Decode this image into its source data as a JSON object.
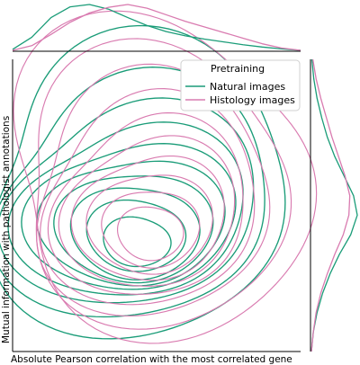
{
  "colors": {
    "natural": "#1a9c78",
    "histology": "#d97bb0",
    "axis": "#000000"
  },
  "chart_data": {
    "type": "kde-contour-joint",
    "xlabel": "Absolute Pearson correlation with the most correlated gene",
    "ylabel": "Mutual information with pathologist annotations",
    "legend": {
      "title": "Pretraining",
      "placement": "top-right",
      "entries": [
        "Natural images",
        "Histology images"
      ]
    },
    "series": [
      {
        "name": "Natural images",
        "color": "#1a9c78",
        "contours": [
          {
            "level": 1,
            "center": [
              0.42,
              0.63
            ],
            "radius": [
              0.115,
              0.09
            ],
            "aspect": 0.95,
            "shift": [
              0.01,
              -0.006
            ],
            "p1": 0.05,
            "p2": 0.03,
            "ph": 0.3
          },
          {
            "level": 2,
            "center": [
              0.415,
              0.61
            ],
            "radius": [
              0.165,
              0.14
            ],
            "aspect": 0.9,
            "shift": [
              0.012,
              -0.008
            ],
            "p1": 0.06,
            "p2": 0.03,
            "ph": 0.7
          },
          {
            "level": 3,
            "center": [
              0.41,
              0.6
            ],
            "radius": [
              0.21,
              0.185
            ],
            "aspect": 0.9,
            "shift": [
              0.015,
              -0.008
            ],
            "p1": 0.07,
            "p2": 0.04,
            "ph": 1.1
          },
          {
            "level": 4,
            "center": [
              0.405,
              0.585
            ],
            "radius": [
              0.255,
              0.225
            ],
            "aspect": 0.88,
            "shift": [
              0.018,
              -0.01
            ],
            "p1": 0.08,
            "p2": 0.04,
            "ph": 1.6
          },
          {
            "level": 5,
            "center": [
              0.4,
              0.57
            ],
            "radius": [
              0.3,
              0.265
            ],
            "aspect": 0.86,
            "shift": [
              0.02,
              -0.012
            ],
            "p1": 0.09,
            "p2": 0.05,
            "ph": 2.0
          },
          {
            "level": 6,
            "center": [
              0.395,
              0.555
            ],
            "radius": [
              0.345,
              0.31
            ],
            "aspect": 0.84,
            "shift": [
              0.022,
              -0.014
            ],
            "p1": 0.1,
            "p2": 0.05,
            "ph": 2.4
          },
          {
            "level": 7,
            "center": [
              0.39,
              0.54
            ],
            "radius": [
              0.39,
              0.36
            ],
            "aspect": 0.82,
            "shift": [
              0.025,
              -0.016
            ],
            "p1": 0.11,
            "p2": 0.06,
            "ph": 2.9
          },
          {
            "level": 8,
            "center": [
              0.39,
              0.52
            ],
            "radius": [
              0.44,
              0.42
            ],
            "aspect": 0.8,
            "shift": [
              0.028,
              -0.018
            ],
            "p1": 0.12,
            "p2": 0.06,
            "ph": 3.3
          },
          {
            "level": 9,
            "center": [
              0.395,
              0.5
            ],
            "radius": [
              0.495,
              0.5
            ],
            "aspect": 0.78,
            "shift": [
              0.03,
              -0.02
            ],
            "p1": 0.13,
            "p2": 0.07,
            "ph": 3.8
          },
          {
            "level": 10,
            "center": [
              0.405,
              0.47
            ],
            "radius": [
              0.56,
              0.62
            ],
            "aspect": 0.76,
            "shift": [
              0.034,
              -0.024
            ],
            "p1": 0.14,
            "p2": 0.07,
            "ph": 4.3
          }
        ],
        "marginal_x": [
          0.04,
          0.3,
          0.72,
          0.95,
          1.0,
          0.9,
          0.72,
          0.55,
          0.42,
          0.33,
          0.26,
          0.2,
          0.14,
          0.09,
          0.05,
          0.02
        ],
        "marginal_y": [
          0.02,
          0.06,
          0.14,
          0.26,
          0.42,
          0.62,
          0.86,
          1.0,
          0.92,
          0.72,
          0.52,
          0.36,
          0.24,
          0.14,
          0.07,
          0.03
        ]
      },
      {
        "name": "Histology images",
        "color": "#d97bb0",
        "contours": [
          {
            "level": 1,
            "center": [
              0.47,
              0.6
            ],
            "radius": [
              0.11,
              0.1
            ],
            "aspect": 0.95,
            "shift": [
              0.008,
              -0.005
            ],
            "p1": 0.05,
            "p2": 0.03,
            "ph": 0.9
          },
          {
            "level": 2,
            "center": [
              0.47,
              0.585
            ],
            "radius": [
              0.16,
              0.15
            ],
            "aspect": 0.92,
            "shift": [
              0.01,
              -0.006
            ],
            "p1": 0.06,
            "p2": 0.04,
            "ph": 1.4
          },
          {
            "level": 3,
            "center": [
              0.468,
              0.57
            ],
            "radius": [
              0.205,
              0.2
            ],
            "aspect": 0.9,
            "shift": [
              0.012,
              -0.008
            ],
            "p1": 0.07,
            "p2": 0.04,
            "ph": 1.9
          },
          {
            "level": 4,
            "center": [
              0.466,
              0.555
            ],
            "radius": [
              0.25,
              0.25
            ],
            "aspect": 0.88,
            "shift": [
              0.014,
              -0.01
            ],
            "p1": 0.08,
            "p2": 0.05,
            "ph": 2.4
          },
          {
            "level": 5,
            "center": [
              0.464,
              0.54
            ],
            "radius": [
              0.295,
              0.3
            ],
            "aspect": 0.86,
            "shift": [
              0.016,
              -0.012
            ],
            "p1": 0.09,
            "p2": 0.05,
            "ph": 2.9
          },
          {
            "level": 6,
            "center": [
              0.462,
              0.525
            ],
            "radius": [
              0.34,
              0.355
            ],
            "aspect": 0.84,
            "shift": [
              0.018,
              -0.014
            ],
            "p1": 0.1,
            "p2": 0.06,
            "ph": 3.4
          },
          {
            "level": 7,
            "center": [
              0.46,
              0.505
            ],
            "radius": [
              0.39,
              0.415
            ],
            "aspect": 0.82,
            "shift": [
              0.02,
              -0.016
            ],
            "p1": 0.11,
            "p2": 0.06,
            "ph": 3.9
          },
          {
            "level": 8,
            "center": [
              0.462,
              0.485
            ],
            "radius": [
              0.44,
              0.48
            ],
            "aspect": 0.8,
            "shift": [
              0.022,
              -0.018
            ],
            "p1": 0.12,
            "p2": 0.07,
            "ph": 4.4
          },
          {
            "level": 9,
            "center": [
              0.47,
              0.46
            ],
            "radius": [
              0.5,
              0.56
            ],
            "aspect": 0.78,
            "shift": [
              0.025,
              -0.02
            ],
            "p1": 0.13,
            "p2": 0.07,
            "ph": 4.9
          },
          {
            "level": 10,
            "center": [
              0.48,
              0.43
            ],
            "radius": [
              0.56,
              0.66
            ],
            "aspect": 0.76,
            "shift": [
              0.028,
              -0.022
            ],
            "p1": 0.14,
            "p2": 0.08,
            "ph": 5.4
          }
        ],
        "marginal_x": [
          0.02,
          0.12,
          0.36,
          0.62,
          0.82,
          0.94,
          1.0,
          0.92,
          0.78,
          0.64,
          0.52,
          0.4,
          0.28,
          0.16,
          0.07,
          0.02
        ],
        "marginal_y": [
          0.02,
          0.06,
          0.12,
          0.22,
          0.36,
          0.52,
          0.7,
          0.82,
          0.84,
          0.74,
          0.6,
          0.46,
          0.34,
          0.22,
          0.12,
          0.05
        ]
      }
    ],
    "grid": false
  }
}
